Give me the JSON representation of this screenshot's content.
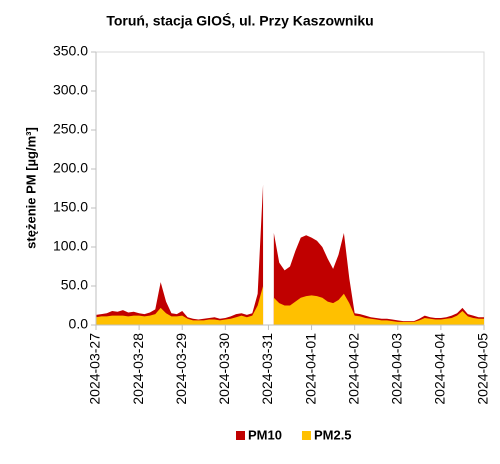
{
  "chart_data": {
    "type": "area",
    "title": "Toruń, stacja GIOŚ, ul. Przy Kaszowniku",
    "y_label": "stężenie PM [µg/m³]",
    "categories": [
      "2024-03-27",
      null,
      null,
      null,
      null,
      null,
      null,
      null,
      "2024-03-28",
      null,
      null,
      null,
      null,
      null,
      null,
      null,
      "2024-03-29",
      null,
      null,
      null,
      null,
      null,
      null,
      null,
      "2024-03-30",
      null,
      null,
      null,
      null,
      null,
      null,
      null,
      "2024-03-31",
      null,
      null,
      null,
      null,
      null,
      null,
      null,
      "2024-04-01",
      null,
      null,
      null,
      null,
      null,
      null,
      null,
      "2024-04-02",
      null,
      null,
      null,
      null,
      null,
      null,
      null,
      "2024-04-03",
      null,
      null,
      null,
      null,
      null,
      null,
      null,
      "2024-04-04",
      null,
      null,
      null,
      null,
      null,
      null,
      null,
      "2024-04-05"
    ],
    "series": [
      {
        "name": "PM10",
        "color": "#c00000",
        "values": [
          13,
          14,
          15,
          18,
          17,
          19,
          16,
          17,
          15,
          14,
          16,
          20,
          55,
          30,
          15,
          14,
          18,
          10,
          8,
          7,
          8,
          9,
          10,
          8,
          9,
          11,
          14,
          15,
          13,
          15,
          40,
          180,
          null,
          118,
          80,
          70,
          75,
          95,
          112,
          115,
          112,
          108,
          100,
          85,
          72,
          90,
          118,
          60,
          15,
          14,
          12,
          10,
          9,
          8,
          8,
          7,
          6,
          5,
          5,
          5,
          8,
          12,
          10,
          9,
          9,
          10,
          12,
          15,
          22,
          14,
          12,
          10,
          10
        ]
      },
      {
        "name": "PM2.5",
        "color": "#ffc000",
        "values": [
          10,
          11,
          11,
          12,
          12,
          12,
          11,
          12,
          12,
          11,
          12,
          14,
          22,
          15,
          11,
          11,
          12,
          8,
          6,
          6,
          6,
          7,
          7,
          6,
          7,
          8,
          10,
          12,
          10,
          12,
          25,
          50,
          null,
          35,
          28,
          25,
          25,
          30,
          35,
          37,
          38,
          37,
          35,
          30,
          28,
          32,
          40,
          28,
          12,
          11,
          9,
          8,
          7,
          6,
          6,
          5,
          4,
          4,
          4,
          4,
          6,
          9,
          8,
          7,
          7,
          8,
          9,
          12,
          18,
          11,
          9,
          8,
          8
        ]
      }
    ],
    "ylim": [
      0,
      350
    ],
    "yticks": [
      {
        "value": 0,
        "label": "0.0"
      },
      {
        "value": 50,
        "label": "50.0"
      },
      {
        "value": 100,
        "label": "100.0"
      },
      {
        "value": 150,
        "label": "150.0"
      },
      {
        "value": 200,
        "label": "200.0"
      },
      {
        "value": 250,
        "label": "250.0"
      },
      {
        "value": 300,
        "label": "300.0"
      },
      {
        "value": 350,
        "label": "350.0"
      }
    ],
    "legend": "bottom"
  }
}
